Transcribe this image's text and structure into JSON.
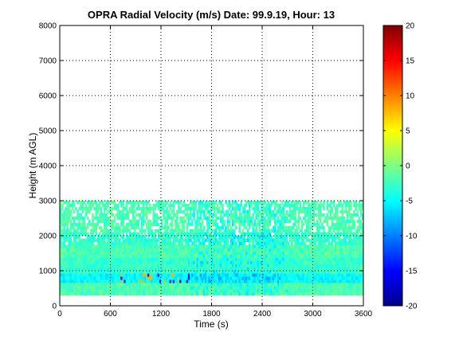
{
  "chart_data": {
    "type": "heatmap",
    "title": "OPRA Radial Velocity (m/s)  Date: 99.9.19, Hour: 13",
    "xlabel": "Time (s)",
    "ylabel": "Height (m AGL)",
    "xlim": [
      0,
      3600
    ],
    "ylim": [
      0,
      8000
    ],
    "xticks": [
      0,
      600,
      1200,
      1800,
      2400,
      3000,
      3600
    ],
    "yticks": [
      0,
      1000,
      2000,
      3000,
      4000,
      5000,
      6000,
      7000,
      8000
    ],
    "grid": true,
    "colorbar": {
      "min": -20,
      "max": 20,
      "ticks": [
        20,
        15,
        10,
        5,
        0,
        -5,
        -10,
        -15,
        -20
      ],
      "colormap": "jet"
    },
    "colormap_stops": [
      "#00008f",
      "#0000ff",
      "#00ffff",
      "#ffff00",
      "#ff0000",
      "#800000"
    ],
    "data_extent": {
      "time_range": [
        0,
        3600
      ],
      "height_range": [
        300,
        3000
      ],
      "predominant_velocity": -2
    },
    "bands": [
      {
        "height_range": [
          300,
          600
        ],
        "velocity": -2
      },
      {
        "height_range": [
          600,
          900
        ],
        "velocity": -5
      },
      {
        "height_range": [
          900,
          1300
        ],
        "velocity": -3
      },
      {
        "height_range": [
          1300,
          1700
        ],
        "velocity": -2
      },
      {
        "height_range": [
          1700,
          2100
        ],
        "velocity": -3
      },
      {
        "height_range": [
          2100,
          2600
        ],
        "velocity": -2
      },
      {
        "height_range": [
          2600,
          3000
        ],
        "velocity": -2
      }
    ]
  }
}
